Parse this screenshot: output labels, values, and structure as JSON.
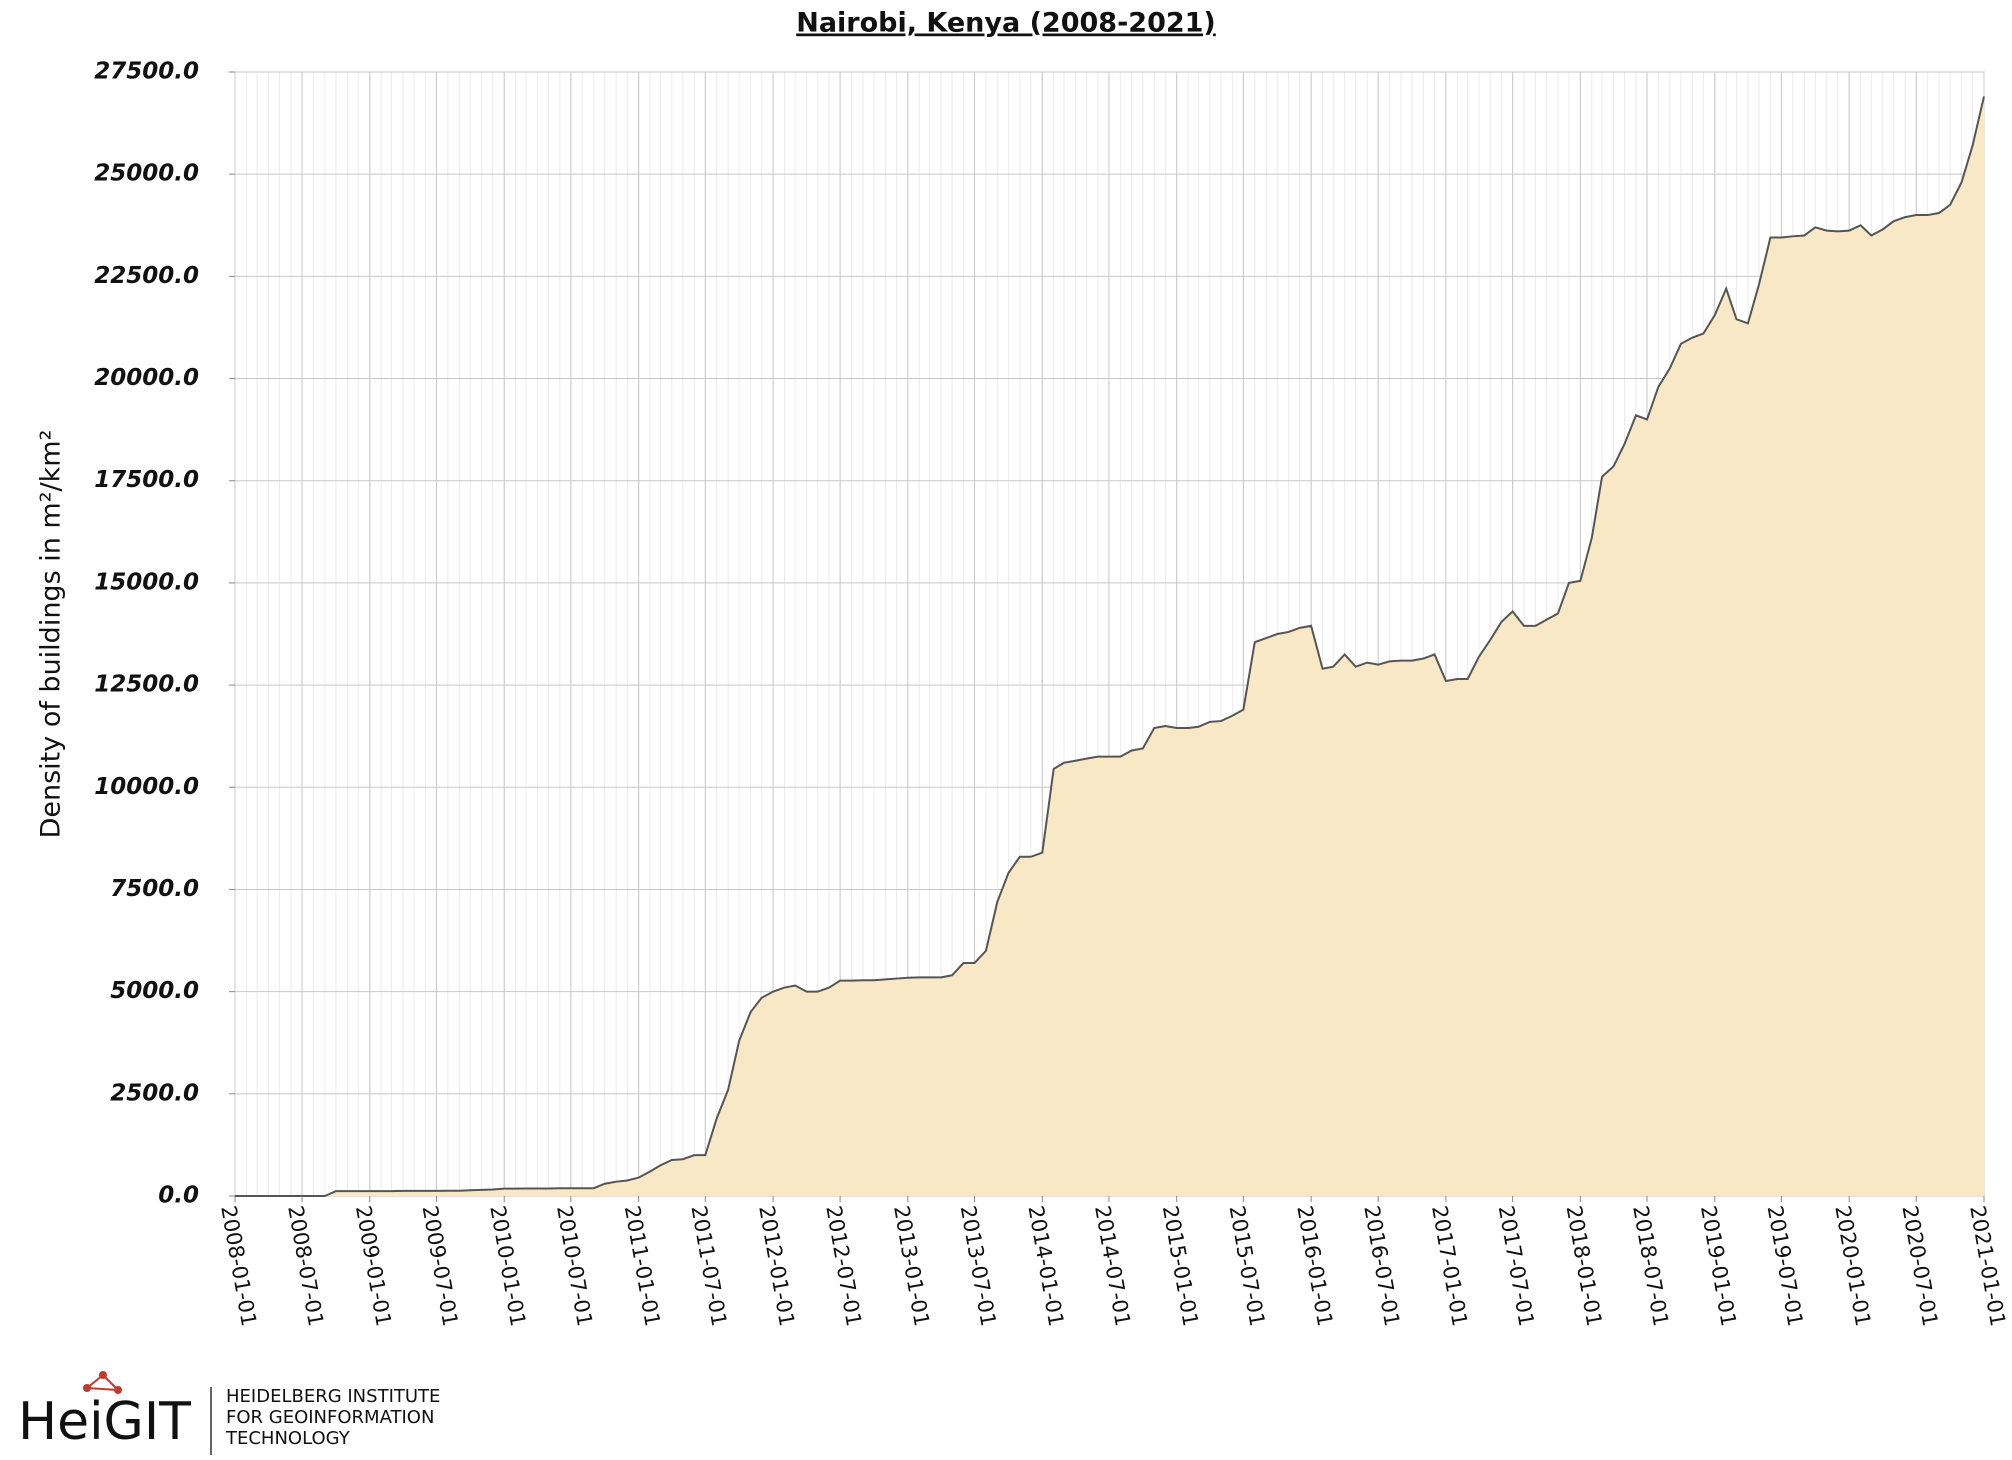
{
  "chart_data": {
    "type": "area",
    "title": "Nairobi, Kenya (2008-2021)",
    "ylabel": "Density of buildings in m²/km²",
    "color": "#f8e8c6",
    "line_color": "#555555",
    "grid": true,
    "x": [
      "2008-01-01",
      "2008-02-01",
      "2008-03-01",
      "2008-04-01",
      "2008-05-01",
      "2008-06-01",
      "2008-07-01",
      "2008-08-01",
      "2008-09-01",
      "2008-10-01",
      "2008-11-01",
      "2008-12-01",
      "2009-01-01",
      "2009-02-01",
      "2009-03-01",
      "2009-04-01",
      "2009-05-01",
      "2009-06-01",
      "2009-07-01",
      "2009-08-01",
      "2009-09-01",
      "2009-10-01",
      "2009-11-01",
      "2009-12-01",
      "2010-01-01",
      "2010-02-01",
      "2010-03-01",
      "2010-04-01",
      "2010-05-01",
      "2010-06-01",
      "2010-07-01",
      "2010-08-01",
      "2010-09-01",
      "2010-10-01",
      "2010-11-01",
      "2010-12-01",
      "2011-01-01",
      "2011-02-01",
      "2011-03-01",
      "2011-04-01",
      "2011-05-01",
      "2011-06-01",
      "2011-07-01",
      "2011-08-01",
      "2011-09-01",
      "2011-10-01",
      "2011-11-01",
      "2011-12-01",
      "2012-01-01",
      "2012-02-01",
      "2012-03-01",
      "2012-04-01",
      "2012-05-01",
      "2012-06-01",
      "2012-07-01",
      "2012-08-01",
      "2012-09-01",
      "2012-10-01",
      "2012-11-01",
      "2012-12-01",
      "2013-01-01",
      "2013-02-01",
      "2013-03-01",
      "2013-04-01",
      "2013-05-01",
      "2013-06-01",
      "2013-07-01",
      "2013-08-01",
      "2013-09-01",
      "2013-10-01",
      "2013-11-01",
      "2013-12-01",
      "2014-01-01",
      "2014-02-01",
      "2014-03-01",
      "2014-04-01",
      "2014-05-01",
      "2014-06-01",
      "2014-07-01",
      "2014-08-01",
      "2014-09-01",
      "2014-10-01",
      "2014-11-01",
      "2014-12-01",
      "2015-01-01",
      "2015-02-01",
      "2015-03-01",
      "2015-04-01",
      "2015-05-01",
      "2015-06-01",
      "2015-07-01",
      "2015-08-01",
      "2015-09-01",
      "2015-10-01",
      "2015-11-01",
      "2015-12-01",
      "2016-01-01",
      "2016-02-01",
      "2016-03-01",
      "2016-04-01",
      "2016-05-01",
      "2016-06-01",
      "2016-07-01",
      "2016-08-01",
      "2016-09-01",
      "2016-10-01",
      "2016-11-01",
      "2016-12-01",
      "2017-01-01",
      "2017-02-01",
      "2017-03-01",
      "2017-04-01",
      "2017-05-01",
      "2017-06-01",
      "2017-07-01",
      "2017-08-01",
      "2017-09-01",
      "2017-10-01",
      "2017-11-01",
      "2017-12-01",
      "2018-01-01",
      "2018-02-01",
      "2018-03-01",
      "2018-04-01",
      "2018-05-01",
      "2018-06-01",
      "2018-07-01",
      "2018-08-01",
      "2018-09-01",
      "2018-10-01",
      "2018-11-01",
      "2018-12-01",
      "2019-01-01",
      "2019-02-01",
      "2019-03-01",
      "2019-04-01",
      "2019-05-01",
      "2019-06-01",
      "2019-07-01",
      "2019-08-01",
      "2019-09-01",
      "2019-10-01",
      "2019-11-01",
      "2019-12-01",
      "2020-01-01",
      "2020-02-01",
      "2020-03-01",
      "2020-04-01",
      "2020-05-01",
      "2020-06-01",
      "2020-07-01",
      "2020-08-01",
      "2020-09-01",
      "2020-10-01",
      "2020-11-01",
      "2020-12-01",
      "2021-01-01"
    ],
    "values": [
      0,
      0,
      0,
      0,
      0,
      0,
      0,
      0,
      0,
      120,
      120,
      120,
      120,
      120,
      120,
      125,
      125,
      125,
      125,
      130,
      130,
      140,
      150,
      160,
      180,
      180,
      185,
      185,
      185,
      190,
      190,
      190,
      190,
      300,
      350,
      380,
      450,
      600,
      750,
      880,
      900,
      1000,
      1000,
      1900,
      2600,
      3800,
      4500,
      4850,
      5000,
      5100,
      5150,
      5000,
      5000,
      5100,
      5270,
      5270,
      5280,
      5280,
      5300,
      5320,
      5340,
      5350,
      5350,
      5350,
      5400,
      5700,
      5700,
      6000,
      7200,
      7900,
      8300,
      8300,
      8400,
      10450,
      10600,
      10650,
      10700,
      10750,
      10750,
      10750,
      10900,
      10950,
      11450,
      11500,
      11450,
      11450,
      11480,
      11600,
      11620,
      11750,
      11900,
      13550,
      13650,
      13750,
      13800,
      13900,
      13950,
      12900,
      12950,
      13250,
      12950,
      13050,
      13000,
      13080,
      13100,
      13100,
      13150,
      13250,
      12600,
      12650,
      12650,
      13200,
      13600,
      14050,
      14300,
      13950,
      13950,
      14100,
      14250,
      15000,
      15050,
      16100,
      17600,
      17850,
      18400,
      19100,
      19000,
      19800,
      20250,
      20850,
      21000,
      21100,
      21550,
      22200,
      21450,
      21350,
      22300,
      23450,
      23450,
      23480,
      23500,
      23700,
      23620,
      23600,
      23620,
      23750,
      23500,
      23650,
      23850,
      23950,
      24000,
      24000,
      24050,
      24250,
      24800,
      25700,
      26900
    ],
    "xlim": [
      "2008-01-01",
      "2021-01-01"
    ],
    "xticks": [
      "2008-01-01",
      "2008-07-01",
      "2009-01-01",
      "2009-07-01",
      "2010-01-01",
      "2010-07-01",
      "2011-01-01",
      "2011-07-01",
      "2012-01-01",
      "2012-07-01",
      "2013-01-01",
      "2013-07-01",
      "2014-01-01",
      "2014-07-01",
      "2015-01-01",
      "2015-07-01",
      "2016-01-01",
      "2016-07-01",
      "2017-01-01",
      "2017-07-01",
      "2018-01-01",
      "2018-07-01",
      "2019-01-01",
      "2019-07-01",
      "2020-01-01",
      "2020-07-01",
      "2021-01-01"
    ],
    "ylim": [
      0,
      27500
    ],
    "yticks": [
      {
        "value": 0,
        "label": "0.0"
      },
      {
        "value": 2500,
        "label": "2500.0"
      },
      {
        "value": 5000,
        "label": "5000.0"
      },
      {
        "value": 7500,
        "label": "7500.0"
      },
      {
        "value": 10000,
        "label": "10000.0"
      },
      {
        "value": 12500,
        "label": "12500.0"
      },
      {
        "value": 15000,
        "label": "15000.0"
      },
      {
        "value": 17500,
        "label": "17500.0"
      },
      {
        "value": 20000,
        "label": "20000.0"
      },
      {
        "value": 22500,
        "label": "22500.0"
      },
      {
        "value": 25000,
        "label": "25000.0"
      },
      {
        "value": 27500,
        "label": "27500.0"
      }
    ]
  },
  "logo": {
    "name": "HeiGIT",
    "lines": [
      "HEIDELBERG INSTITUTE",
      "FOR GEOINFORMATION",
      "TECHNOLOGY"
    ]
  }
}
